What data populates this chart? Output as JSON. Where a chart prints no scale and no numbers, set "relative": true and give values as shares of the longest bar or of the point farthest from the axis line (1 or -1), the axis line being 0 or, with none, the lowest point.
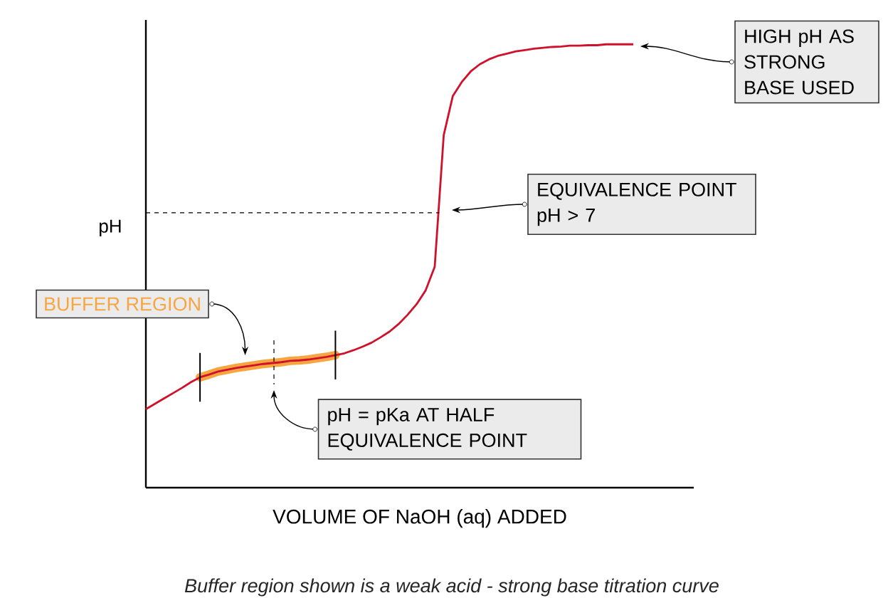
{
  "chart_data": {
    "type": "line",
    "relative": true,
    "xlabel": "VOLUME OF NaOH (aq) ADDED",
    "ylabel": "pH",
    "marker": "none",
    "line_style": "solid",
    "categories": [
      null,
      null,
      null,
      null,
      null,
      null,
      null,
      null,
      null,
      null,
      null,
      null,
      null,
      null,
      null,
      null,
      null,
      null,
      null,
      null,
      null,
      null,
      null,
      null,
      null,
      null,
      null,
      null,
      null,
      null,
      null,
      null,
      null,
      null,
      null,
      null,
      null,
      null,
      null,
      null,
      null,
      null,
      null,
      null,
      null,
      null,
      null,
      null,
      null,
      null,
      null,
      null,
      null,
      null,
      null
    ],
    "series": [
      {
        "name": "BUFFER REGION",
        "color": "#f7a540",
        "values": [
          null,
          null,
          null,
          null,
          null,
          null,
          0.249,
          0.255,
          0.262,
          0.266,
          0.27,
          0.273,
          0.276,
          0.279,
          0.281,
          0.283,
          0.286,
          0.287,
          0.289,
          0.292,
          0.295,
          0.299,
          null,
          null,
          null,
          null,
          null,
          null,
          null,
          null,
          null,
          null,
          null,
          null,
          null,
          null,
          null,
          null,
          null,
          null,
          null,
          null,
          null,
          null,
          null,
          null,
          null,
          null,
          null,
          null,
          null,
          null,
          null,
          null,
          null
        ]
      },
      {
        "color": "#d0112b",
        "values": [
          0.177,
          0.189,
          0.201,
          0.213,
          0.225,
          0.238,
          0.249,
          0.255,
          0.262,
          0.266,
          0.27,
          0.273,
          0.276,
          0.279,
          0.281,
          0.283,
          0.286,
          0.287,
          0.289,
          0.292,
          0.295,
          0.299,
          0.303,
          0.31,
          0.318,
          0.327,
          0.339,
          0.352,
          0.369,
          0.39,
          0.414,
          0.445,
          0.498,
          0.795,
          0.883,
          0.915,
          0.939,
          0.955,
          0.966,
          0.974,
          0.979,
          0.984,
          0.987,
          0.99,
          0.992,
          0.994,
          0.995,
          0.997,
          0.997,
          0.998,
          0.998,
          1,
          1,
          1,
          1
        ]
      }
    ],
    "ref_lines": [
      {
        "axis": "y",
        "value": 0.62,
        "line_style": "dashed"
      }
    ],
    "annotations": [
      "HIGH pH AS STRONG BASE USED",
      "EQUIVALENCE POINT pH > 7",
      "pH = pKa AT HALF EQUIVALENCE POINT",
      "Buffer region shown is a weak acid - strong base titration curve"
    ]
  }
}
